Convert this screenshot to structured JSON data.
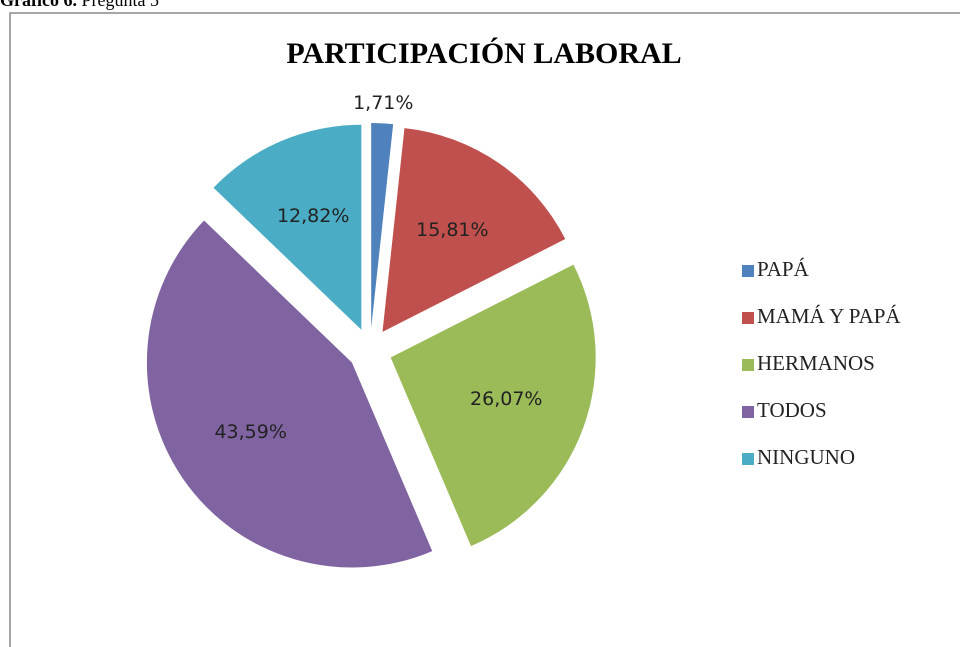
{
  "caption": {
    "label": "Gráfico 6.",
    "text": "Pregunta 5"
  },
  "chart_data": {
    "type": "pie",
    "title": "PARTICIPACIÓN LABORAL",
    "categories": [
      "PAPÁ",
      "MAMÁ Y PAPÁ",
      "HERMANOS",
      "TODOS",
      "NINGUNO"
    ],
    "values": [
      1.71,
      15.81,
      26.07,
      43.59,
      12.82
    ],
    "value_labels": [
      "1,71%",
      "15,81%",
      "26,07%",
      "43,59%",
      "12,82%"
    ],
    "colors": [
      "#4f81bd",
      "#c0504d",
      "#9bbb59",
      "#8064a2",
      "#4bacc6"
    ],
    "legend": "right"
  }
}
